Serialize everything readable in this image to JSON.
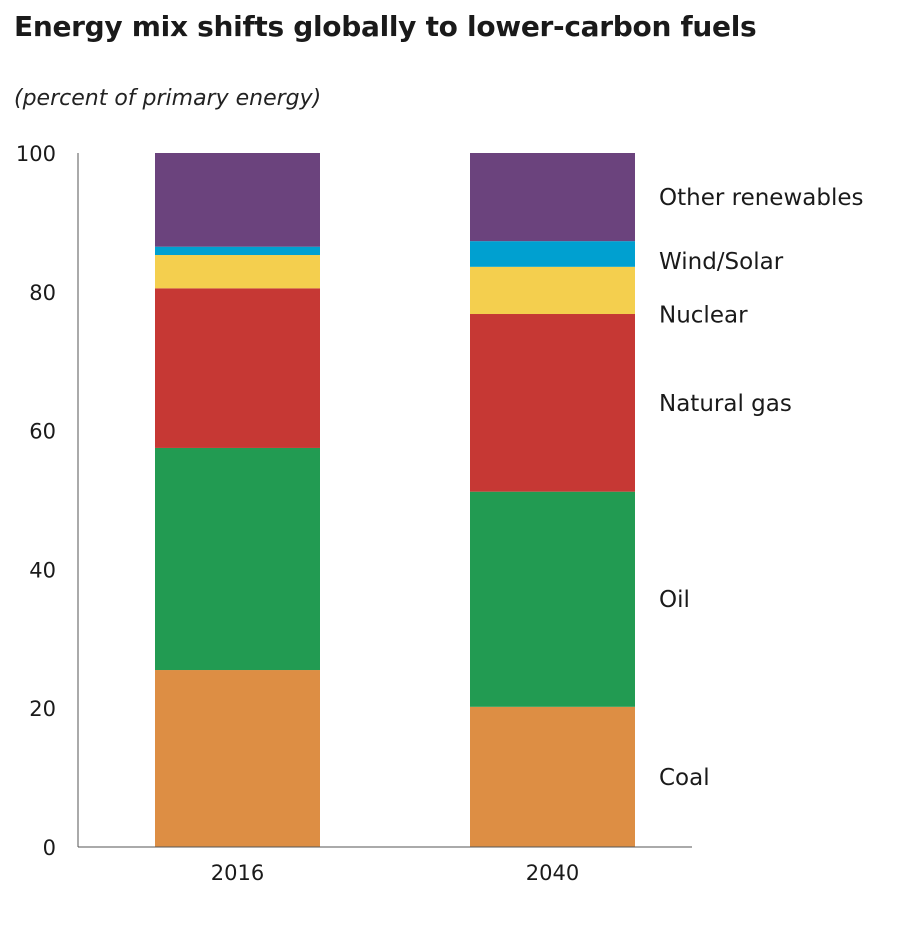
{
  "chart_data": {
    "type": "bar",
    "stacked": true,
    "title": "Energy mix shifts globally to lower-carbon fuels",
    "subtitle": "(percent of primary energy)",
    "categories": [
      "2016",
      "2040"
    ],
    "ylim": [
      0,
      100
    ],
    "yticks": [
      0,
      20,
      40,
      60,
      80,
      100
    ],
    "grid": false,
    "legend": "right, labels beside 2040 bar",
    "series": [
      {
        "name": "Coal",
        "values": [
          25.5,
          20.2
        ],
        "color": "#DD8E44"
      },
      {
        "name": "Oil",
        "values": [
          32.0,
          31.0
        ],
        "color": "#229B52"
      },
      {
        "name": "Natural gas",
        "values": [
          23.0,
          25.6
        ],
        "color": "#C63834"
      },
      {
        "name": "Nuclear",
        "values": [
          4.8,
          6.8
        ],
        "color": "#F4CF4E"
      },
      {
        "name": "Wind/Solar",
        "values": [
          1.2,
          3.7
        ],
        "color": "#00A0D0"
      },
      {
        "name": "Other renewables",
        "values": [
          13.5,
          12.7
        ],
        "color": "#6B437D"
      }
    ]
  }
}
